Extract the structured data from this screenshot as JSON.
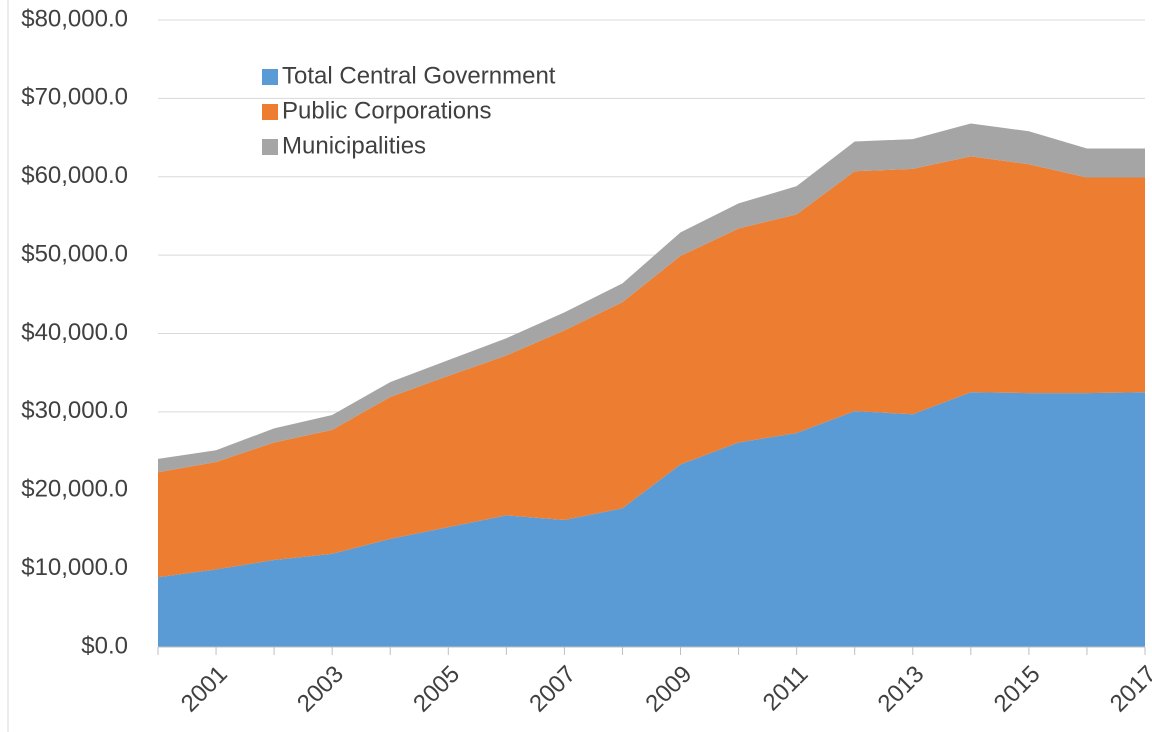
{
  "chart_data": {
    "type": "stacked-area",
    "categories": [
      null,
      "2001",
      null,
      "2003",
      null,
      "2005",
      null,
      "2007",
      null,
      "2009",
      null,
      "2011",
      null,
      "2013",
      null,
      "2015",
      null,
      "2017"
    ],
    "series": [
      {
        "name": "Total Central Government",
        "color": "#5b9bd5",
        "values": [
          8900,
          9900,
          11100,
          11900,
          13800,
          15300,
          16800,
          16200,
          17700,
          23300,
          26100,
          27300,
          30100,
          29700,
          32500,
          32400,
          32400,
          32500
        ]
      },
      {
        "name": "Public Corporations",
        "color": "#ed7d31",
        "values": [
          13400,
          13700,
          15000,
          15800,
          18100,
          19300,
          20400,
          24200,
          26300,
          26600,
          27300,
          27900,
          30600,
          31300,
          30100,
          29200,
          27500,
          27400
        ]
      },
      {
        "name": "Municipalities",
        "color": "#a5a5a5",
        "values": [
          1700,
          1500,
          1800,
          1900,
          1900,
          2000,
          2200,
          2300,
          2400,
          3000,
          3200,
          3600,
          3800,
          3800,
          4200,
          4200,
          3700,
          3700
        ]
      }
    ],
    "ylim": [
      0,
      80000
    ],
    "yticks": [
      {
        "value": 0,
        "label": "$0.0"
      },
      {
        "value": 10000,
        "label": "$10,000.0"
      },
      {
        "value": 20000,
        "label": "$20,000.0"
      },
      {
        "value": 30000,
        "label": "$30,000.0"
      },
      {
        "value": 40000,
        "label": "$40,000.0"
      },
      {
        "value": 50000,
        "label": "$50,000.0"
      },
      {
        "value": 60000,
        "label": "$60,000.0"
      },
      {
        "value": 70000,
        "label": "$70,000.0"
      },
      {
        "value": 80000,
        "label": "$80,000.0"
      }
    ],
    "grid": true,
    "legend": "upper left"
  }
}
